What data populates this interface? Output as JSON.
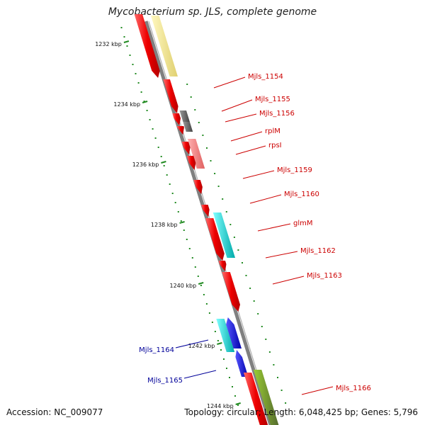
{
  "title": "Mycobacterium sp. JLS, complete genome",
  "footer": {
    "accession": "Accession: NC_009077",
    "summary": "Topology: circular; Length: 6,048,425 bp; Genes: 5,796"
  },
  "kbp_ticks": [
    "1232 kbp",
    "1234 kbp",
    "1236 kbp",
    "1238 kbp",
    "1240 kbp",
    "1242 kbp",
    "1244 kbp"
  ],
  "gene_labels": [
    {
      "text": "Mjls_1154",
      "color": "#cc0000"
    },
    {
      "text": "Mjls_1155",
      "color": "#cc0000"
    },
    {
      "text": "Mjls_1156",
      "color": "#cc0000"
    },
    {
      "text": "rplM",
      "color": "#cc0000"
    },
    {
      "text": "rpsI",
      "color": "#cc0000"
    },
    {
      "text": "Mjls_1159",
      "color": "#cc0000"
    },
    {
      "text": "Mjls_1160",
      "color": "#cc0000"
    },
    {
      "text": "glmM",
      "color": "#cc0000"
    },
    {
      "text": "Mjls_1162",
      "color": "#cc0000"
    },
    {
      "text": "Mjls_1163",
      "color": "#cc0000"
    },
    {
      "text": "Mjls_1164",
      "color": "#000099"
    },
    {
      "text": "Mjls_1165",
      "color": "#000099"
    },
    {
      "text": "Mjls_1166",
      "color": "#cc0000"
    }
  ],
  "colors": {
    "cds": "#ee0000",
    "rna_gray": "#666666",
    "rna_pink": "#f08080",
    "cyan": "#00cccc",
    "blue": "#0000dd",
    "olive": "#6b8e23",
    "pale": "#f0e68c",
    "backbone": "#808080",
    "gc_dots": "#228b22"
  }
}
